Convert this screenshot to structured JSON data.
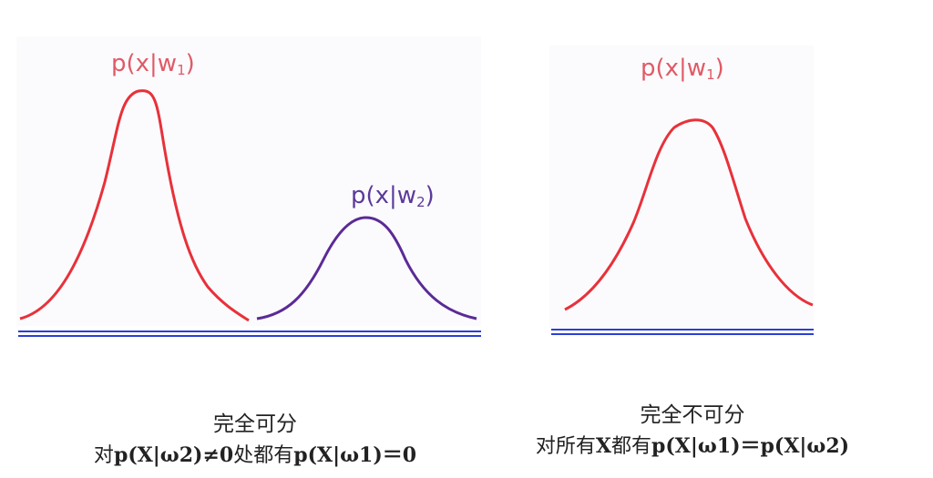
{
  "colors": {
    "red_curve": "#e8313a",
    "purple_curve": "#5b2a96",
    "axis": "#2a3fd6",
    "label_red": "#e05a66",
    "label_purple": "#5b3a9a"
  },
  "left_figure": {
    "label_w1": {
      "base": "p(x|w",
      "sub": "1",
      "close": ")"
    },
    "label_w2": {
      "base": "p(x|w",
      "sub": "2",
      "close": ")"
    },
    "caption_title": "完全可分",
    "caption_prefix": "对",
    "caption_expr1": "p(X|ω2)≠0",
    "caption_mid": "处都有",
    "caption_expr2": "p(X|ω1)＝0"
  },
  "right_figure": {
    "label_w1": {
      "base": "p(x|w",
      "sub": "1",
      "close": ")"
    },
    "caption_title": "完全不可分",
    "caption_prefix": "对所有",
    "caption_x": "X",
    "caption_mid": "都有",
    "caption_expr": "p(X|ω1)＝p(X|ω2)"
  }
}
